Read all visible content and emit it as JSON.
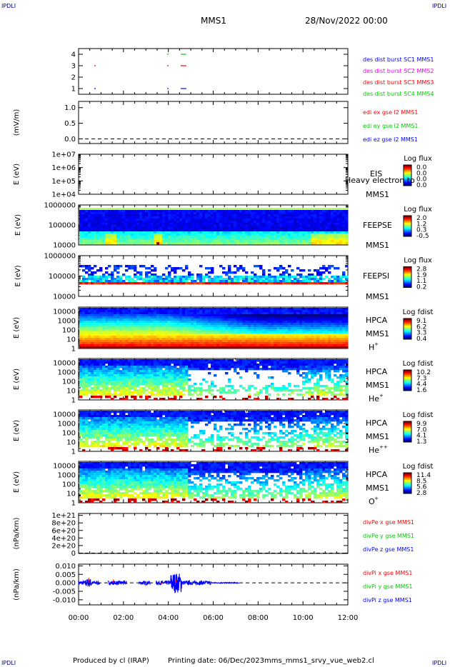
{
  "header": {
    "mission": "MMS1",
    "datetime": "28/Nov/2022 00:00",
    "logo": "IPDLI"
  },
  "footer": {
    "produced": "Produced by cl (IRAP)",
    "printing": "Printing date: 06/Dec/2023",
    "script": "mms_mms1_srvy_vue_web2.cl"
  },
  "colors": {
    "red": "#ff0000",
    "green": "#00cc00",
    "blue": "#0000ff",
    "magenta": "#ee00ee"
  },
  "chart_data": [
    {
      "type": "line",
      "id": "burst",
      "yticks": [
        "4",
        "3",
        "2",
        "1"
      ],
      "ylim": [
        0.5,
        4.5
      ],
      "series": [
        {
          "name": "des dist burst SC1 MMS1",
          "color": "#0000ff",
          "y": 1,
          "segments": [
            [
              0.7,
              0.72
            ],
            [
              3.95,
              4.0
            ],
            [
              4.55,
              4.8
            ]
          ]
        },
        {
          "name": "des dist burst SC2 MMS2",
          "color": "#ee00ee",
          "y": 2,
          "segments": []
        },
        {
          "name": "des dist burst SC3 MMS3",
          "color": "#ff0000",
          "y": 3,
          "segments": [
            [
              0.7,
              0.72
            ],
            [
              3.95,
              4.0
            ],
            [
              4.55,
              4.8
            ]
          ]
        },
        {
          "name": "des dist burst SC4 MMS4",
          "color": "#00cc00",
          "y": 4,
          "segments": [
            [
              3.95,
              4.0
            ],
            [
              4.55,
              4.8
            ]
          ]
        }
      ]
    },
    {
      "type": "line",
      "id": "edi",
      "ylabel": "(mV/m)",
      "yticks": [
        "1.0",
        "0.5",
        "0.0"
      ],
      "ylim": [
        -0.15,
        1.2
      ],
      "series": [
        {
          "name": "edi ex gse l2 MMS1",
          "color": "#ff0000"
        },
        {
          "name": "edi ey gse l2 MMS1",
          "color": "#00cc00"
        },
        {
          "name": "edi ez gse l2 MMS1",
          "color": "#0000ff"
        }
      ]
    },
    {
      "type": "heatmap",
      "id": "eis",
      "ylabel": "E (eV)",
      "yticks": [
        "1e+07",
        "1e+06",
        "1e+05",
        "1e+04"
      ],
      "log": true,
      "ylim": [
        10000,
        10000000
      ],
      "label": [
        "EIS",
        "MMS1"
      ],
      "overlay": "Heavy electron to",
      "colorbar": {
        "title": "Log flux",
        "ticks": [
          "0.0",
          "0.0",
          "0.0",
          "0.0"
        ]
      }
    },
    {
      "type": "heatmap",
      "id": "feepse",
      "ylabel": "E (eV)",
      "yticks": [
        "1000000",
        "100000",
        "10000"
      ],
      "log": true,
      "ylim": [
        10000,
        1000000
      ],
      "label": [
        "FEEPSE",
        "MMS1"
      ],
      "colorbar": {
        "title": "Log flux",
        "ticks": [
          "2.0",
          "1.2",
          "0.3",
          "-0.5"
        ]
      }
    },
    {
      "type": "heatmap",
      "id": "feepsi",
      "ylabel": "E (eV)",
      "yticks": [
        "1000000",
        "100000",
        "10000"
      ],
      "log": true,
      "ylim": [
        10000,
        1000000
      ],
      "label": [
        "FEEPSI",
        "MMS1"
      ],
      "colorbar": {
        "title": "Log flux",
        "ticks": [
          "2.8",
          "1.9",
          "1.1",
          "0.2"
        ]
      }
    },
    {
      "type": "heatmap",
      "id": "hpca_h",
      "ylabel": "E (eV)",
      "yticks": [
        "10000",
        "1000",
        "100",
        "10",
        "1"
      ],
      "log": true,
      "ylim": [
        1,
        30000
      ],
      "label": [
        "HPCA",
        "MMS1",
        "H",
        "+"
      ],
      "colorbar": {
        "title": "Log fdist",
        "ticks": [
          "9.1",
          "6.2",
          "3.3",
          "0.4"
        ]
      }
    },
    {
      "type": "heatmap",
      "id": "hpca_he",
      "ylabel": "E (eV)",
      "yticks": [
        "10000",
        "1000",
        "100",
        "10",
        "1"
      ],
      "log": true,
      "ylim": [
        1,
        30000
      ],
      "label": [
        "HPCA",
        "MMS1",
        "He",
        "+"
      ],
      "colorbar": {
        "title": "Log fdist",
        "ticks": [
          "10.2",
          "7.3",
          "4.4",
          "1.6"
        ]
      }
    },
    {
      "type": "heatmap",
      "id": "hpca_hepp",
      "ylabel": "E (eV)",
      "yticks": [
        "10000",
        "1000",
        "100",
        "10",
        "1"
      ],
      "log": true,
      "ylim": [
        1,
        30000
      ],
      "label": [
        "HPCA",
        "MMS1",
        "He",
        "++"
      ],
      "colorbar": {
        "title": "Log fdist",
        "ticks": [
          "9.9",
          "7.0",
          "4.1",
          "1.3"
        ]
      }
    },
    {
      "type": "heatmap",
      "id": "hpca_o",
      "ylabel": "E (eV)",
      "yticks": [
        "10000",
        "1000",
        "100",
        "10",
        "1"
      ],
      "log": true,
      "ylim": [
        1,
        30000
      ],
      "label": [
        "HPCA",
        "MMS1",
        "O",
        "+"
      ],
      "colorbar": {
        "title": "Log fdist",
        "ticks": [
          "11.4",
          "8.5",
          "5.6",
          "2.8"
        ]
      }
    },
    {
      "type": "line",
      "id": "divpe",
      "ylabel": "(nPa/km)",
      "yticks": [
        "1e+21",
        "8e+20",
        "6e+20",
        "4e+20",
        "2e+20",
        "0"
      ],
      "ylim": [
        -1e+19,
        1.05e+21
      ],
      "series": [
        {
          "name": "divPe x gse MMS1",
          "color": "#ff0000"
        },
        {
          "name": "divPe y gse MMS1",
          "color": "#00cc00"
        },
        {
          "name": "divPe z gse MMS1",
          "color": "#0000ff"
        }
      ]
    },
    {
      "type": "line",
      "id": "divpi",
      "ylabel": "(nPa/km)",
      "yticks": [
        "0.010",
        "0.005",
        "0.000",
        "-0.005",
        "-0.010"
      ],
      "ylim": [
        -0.013,
        0.011
      ],
      "series": [
        {
          "name": "divPi x gse MMS1",
          "color": "#ff0000"
        },
        {
          "name": "divPi y gse MMS1",
          "color": "#00cc00"
        },
        {
          "name": "divPi z gse MMS1",
          "color": "#0000ff"
        }
      ]
    },
    {
      "type": "axis",
      "id": "time",
      "xticks": [
        "00:00",
        "02:00",
        "04:00",
        "06:00",
        "08:00",
        "10:00",
        "12:00"
      ],
      "xlim": [
        0,
        12
      ]
    }
  ]
}
